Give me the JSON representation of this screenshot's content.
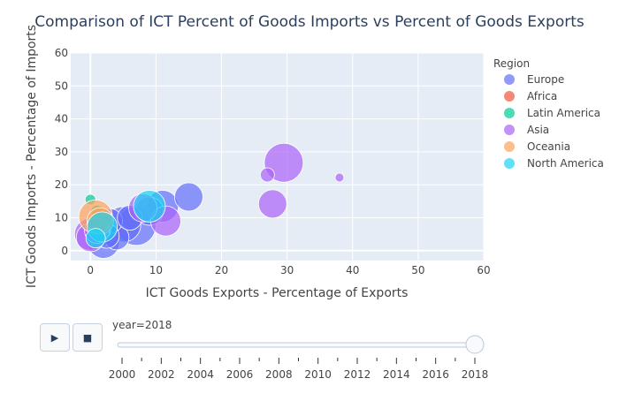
{
  "chart_data": {
    "type": "scatter",
    "title": "Comparison of ICT Percent of Goods Imports vs Percent of Goods Exports",
    "xlabel": "ICT Goods Exports - Percentage of Exports",
    "ylabel": "ICT Goods Imports - Percentage of Imports",
    "xlim": [
      -3,
      60
    ],
    "ylim": [
      -3,
      60
    ],
    "xticks": [
      0,
      10,
      20,
      30,
      40,
      50,
      60
    ],
    "yticks": [
      0,
      10,
      20,
      30,
      40,
      50,
      60
    ],
    "legend_title": "Region",
    "legend_position": "right",
    "series": [
      {
        "name": "Europe",
        "color": "#636efa",
        "points": [
          [
            15,
            16.3,
            16
          ],
          [
            11,
            13.5,
            18
          ],
          [
            9,
            12,
            16
          ],
          [
            7,
            7.5,
            22
          ],
          [
            5,
            8,
            20
          ],
          [
            2,
            2.5,
            18
          ],
          [
            4,
            4,
            14
          ],
          [
            3,
            9,
            14
          ],
          [
            1.5,
            6,
            18
          ],
          [
            6,
            10,
            14
          ],
          [
            0.5,
            7,
            12
          ],
          [
            2.5,
            4.5,
            14
          ]
        ]
      },
      {
        "name": "Africa",
        "color": "#EF553B",
        "points": [
          [
            0.5,
            8.5,
            7
          ],
          [
            1,
            10.5,
            6
          ]
        ]
      },
      {
        "name": "Latin America",
        "color": "#00cc96",
        "points": [
          [
            0,
            15.5,
            6
          ],
          [
            1,
            12,
            7
          ],
          [
            2,
            6,
            8
          ]
        ]
      },
      {
        "name": "Asia",
        "color": "#ab63fa",
        "points": [
          [
            29.5,
            26.7,
            22
          ],
          [
            38,
            22.2,
            5
          ],
          [
            27,
            23,
            8
          ],
          [
            27.8,
            14.2,
            16
          ],
          [
            11.5,
            9,
            17
          ],
          [
            8,
            13,
            16
          ],
          [
            0,
            5,
            18
          ],
          [
            0,
            4,
            16
          ],
          [
            1,
            6,
            14
          ]
        ]
      },
      {
        "name": "Oceania",
        "color": "#FFA15A",
        "points": [
          [
            0.8,
            10.3,
            19
          ],
          [
            1.5,
            9,
            15
          ]
        ]
      },
      {
        "name": "North America",
        "color": "#19d3f3",
        "points": [
          [
            9,
            13.5,
            18
          ],
          [
            1.8,
            7.2,
            17
          ],
          [
            0.8,
            3.8,
            11
          ]
        ]
      }
    ]
  },
  "controls": {
    "play_icon": "▶",
    "stop_icon": "■",
    "slider_label": "year=2018",
    "current_year": 2018,
    "years": [
      "2000",
      "2002",
      "2004",
      "2006",
      "2008",
      "2010",
      "2012",
      "2014",
      "2016",
      "2018"
    ]
  }
}
